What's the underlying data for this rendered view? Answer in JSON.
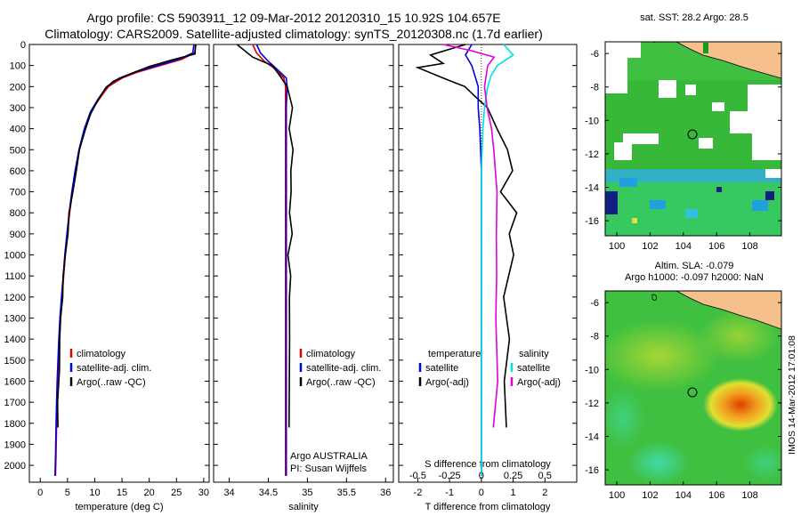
{
  "header": {
    "title_line1": "Argo profile: CS 5903911_12 09-Mar-2012 20120310_15 10.92S 104.657E",
    "title_line2": "Climatology: CARS2009. Satellite-adjusted climatology: synTS_20120308.nc (1.7d earlier)"
  },
  "maps": {
    "sst_title": "sat. SST: 28.2 Argo: 28.5",
    "sla_title_1": "Altim. SLA: -0.079",
    "sla_title_2": "Argo h1000: -0.097 h2000: NaN",
    "imos_label": "IMOS 14-Mar-2012 17:01:08",
    "lat_ticks": [
      "-6",
      "-8",
      "-10",
      "-12",
      "-14",
      "-16"
    ],
    "lon_ticks": [
      "100",
      "102",
      "104",
      "106",
      "108"
    ],
    "land_color": "#f5c08c",
    "ocean_color": "#30c030"
  },
  "chart_data": [
    {
      "id": "temperature",
      "type": "line",
      "xlabel": "temperature (deg C)",
      "ylabel": "",
      "xlim": [
        -2,
        31
      ],
      "ylim": [
        2080,
        0
      ],
      "xticks": [
        0,
        5,
        10,
        15,
        20,
        25,
        30
      ],
      "yticks": [
        0,
        100,
        200,
        300,
        400,
        500,
        600,
        700,
        800,
        900,
        1000,
        1100,
        1200,
        1300,
        1400,
        1500,
        1600,
        1700,
        1800,
        1900,
        2000
      ],
      "legend": [
        "climatology",
        "satellite-adj. clim.",
        "Argo(..raw -QC)"
      ],
      "series": [
        {
          "name": "climatology",
          "color": "#e00000",
          "x": [
            28.6,
            28.3,
            26,
            22,
            18,
            15,
            12.5,
            10.8,
            9.3,
            8.2,
            7.2,
            6.5,
            5.9,
            5.4,
            5.0,
            4.6,
            4.3,
            4.0,
            3.7,
            3.5,
            3.2,
            3.0,
            2.9,
            2.8
          ],
          "y": [
            0,
            40,
            70,
            100,
            130,
            160,
            200,
            260,
            320,
            400,
            500,
            600,
            700,
            800,
            900,
            1000,
            1100,
            1200,
            1300,
            1400,
            1600,
            1800,
            1950,
            2050
          ]
        },
        {
          "name": "satellite-adj. clim.",
          "color": "#0000e0",
          "x": [
            28.2,
            28.0,
            25.5,
            21.5,
            17.5,
            14.5,
            12.2,
            10.6,
            9.2,
            8.1,
            7.1,
            6.4,
            5.8,
            5.3,
            4.9,
            4.5,
            4.2,
            3.9,
            3.6,
            3.4,
            3.1,
            2.9,
            2.8,
            2.7
          ],
          "y": [
            0,
            40,
            70,
            100,
            130,
            160,
            200,
            260,
            320,
            400,
            500,
            600,
            700,
            800,
            900,
            1000,
            1100,
            1200,
            1300,
            1400,
            1600,
            1800,
            1950,
            2050
          ]
        },
        {
          "name": "Argo(..raw -QC)",
          "color": "#000000",
          "x": [
            28.5,
            28.4,
            24,
            20,
            16.5,
            13.5,
            11.8,
            10.5,
            9.3,
            8.2,
            7.3,
            6.6,
            5.9,
            5.4,
            5.0,
            4.6,
            4.3,
            4.0,
            3.8,
            3.6,
            3.4,
            3.3,
            3.2
          ],
          "y": [
            0,
            45,
            75,
            105,
            140,
            175,
            210,
            270,
            330,
            400,
            500,
            600,
            700,
            800,
            900,
            1000,
            1100,
            1200,
            1300,
            1400,
            1550,
            1700,
            1820
          ]
        }
      ]
    },
    {
      "id": "salinity",
      "type": "line",
      "xlabel": "salinity",
      "ylabel": "",
      "xlim": [
        33.8,
        36.1
      ],
      "ylim": [
        2080,
        0
      ],
      "xticks": [
        34,
        34.5,
        35,
        35.5,
        36
      ],
      "legend": [
        "climatology",
        "satellite-adj. clim.",
        "Argo(..raw -QC)"
      ],
      "annotation": [
        "Argo AUSTRALIA",
        "PI: Susan Wijffels"
      ],
      "series": [
        {
          "name": "climatology",
          "color": "#e00000",
          "x": [
            34.3,
            34.35,
            34.45,
            34.6,
            34.7,
            34.72,
            34.72,
            34.72,
            34.72,
            34.72,
            34.72,
            34.72,
            34.72,
            34.72
          ],
          "y": [
            0,
            40,
            80,
            120,
            160,
            200,
            300,
            500,
            700,
            900,
            1200,
            1500,
            1800,
            2050
          ]
        },
        {
          "name": "satellite-adj. clim.",
          "color": "#0000e0",
          "x": [
            34.35,
            34.4,
            34.5,
            34.62,
            34.73,
            34.74,
            34.73,
            34.73,
            34.73,
            34.73,
            34.73,
            34.73,
            34.73,
            34.73
          ],
          "y": [
            0,
            40,
            80,
            120,
            160,
            200,
            300,
            500,
            700,
            900,
            1200,
            1500,
            1800,
            2050
          ]
        },
        {
          "name": "Argo(..raw -QC)",
          "color": "#000000",
          "x": [
            34.1,
            34.2,
            34.3,
            34.55,
            34.65,
            34.75,
            34.8,
            34.77,
            34.82,
            34.78,
            34.8,
            34.77,
            34.8,
            34.76,
            34.78,
            34.77,
            34.78,
            34.76,
            34.77
          ],
          "y": [
            0,
            30,
            60,
            100,
            150,
            200,
            300,
            400,
            500,
            600,
            700,
            800,
            900,
            1000,
            1100,
            1200,
            1400,
            1600,
            1820
          ]
        }
      ]
    },
    {
      "id": "differences",
      "type": "line",
      "xlabel": "T difference from climatology",
      "xlabel_top": "S difference from climatology",
      "xlim": [
        -2.6,
        3
      ],
      "ylim": [
        2080,
        0
      ],
      "xticks": [
        -2,
        -1,
        0,
        1,
        2
      ],
      "xticks_top": [
        "-0.5",
        "-0.25",
        "0",
        "0.25",
        "0.5"
      ],
      "legend_temperature": [
        "temperature",
        "satellite",
        "Argo(-adj)"
      ],
      "legend_salinity": [
        "salinity",
        "satellite",
        "Argo(-adj)"
      ],
      "series": [
        {
          "name": "T satellite",
          "color": "#0000e0",
          "x": [
            -0.3,
            -0.5,
            -0.3,
            -0.2,
            -0.1,
            -0.1,
            -0.05,
            0,
            0,
            0,
            0,
            0,
            0,
            0
          ],
          "y": [
            0,
            50,
            100,
            150,
            200,
            300,
            400,
            600,
            800,
            1000,
            1300,
            1600,
            1900,
            2050
          ]
        },
        {
          "name": "T Argo(-adj)",
          "color": "#000000",
          "x": [
            -0.5,
            -1.6,
            -1.2,
            -2.0,
            -1.2,
            -0.5,
            -0.2,
            0.2,
            0.5,
            0.8,
            1.0,
            0.6,
            1.1,
            0.9,
            1.0,
            0.7,
            0.9,
            0.7,
            0.8
          ],
          "y": [
            0,
            50,
            90,
            110,
            160,
            200,
            250,
            300,
            400,
            500,
            600,
            700,
            800,
            900,
            1000,
            1200,
            1400,
            1600,
            1820
          ]
        },
        {
          "name": "S satellite",
          "color": "#00e0e0",
          "x": [
            0.7,
            1.0,
            0.5,
            0.3,
            0.2,
            0.1,
            0.05,
            0,
            0,
            0,
            0,
            0,
            0
          ],
          "y": [
            0,
            50,
            100,
            150,
            200,
            300,
            400,
            600,
            800,
            1000,
            1300,
            1600,
            2050
          ]
        },
        {
          "name": "S Argo(-adj)",
          "color": "#e000e0",
          "x": [
            -1.2,
            -0.3,
            0.4,
            0.2,
            0.1,
            0.2,
            0.3,
            0.4,
            0.5,
            0.45,
            0.5,
            0.45,
            0.5,
            0.4
          ],
          "y": [
            0,
            30,
            60,
            100,
            200,
            300,
            400,
            500,
            700,
            900,
            1100,
            1300,
            1600,
            1820
          ]
        }
      ]
    }
  ]
}
